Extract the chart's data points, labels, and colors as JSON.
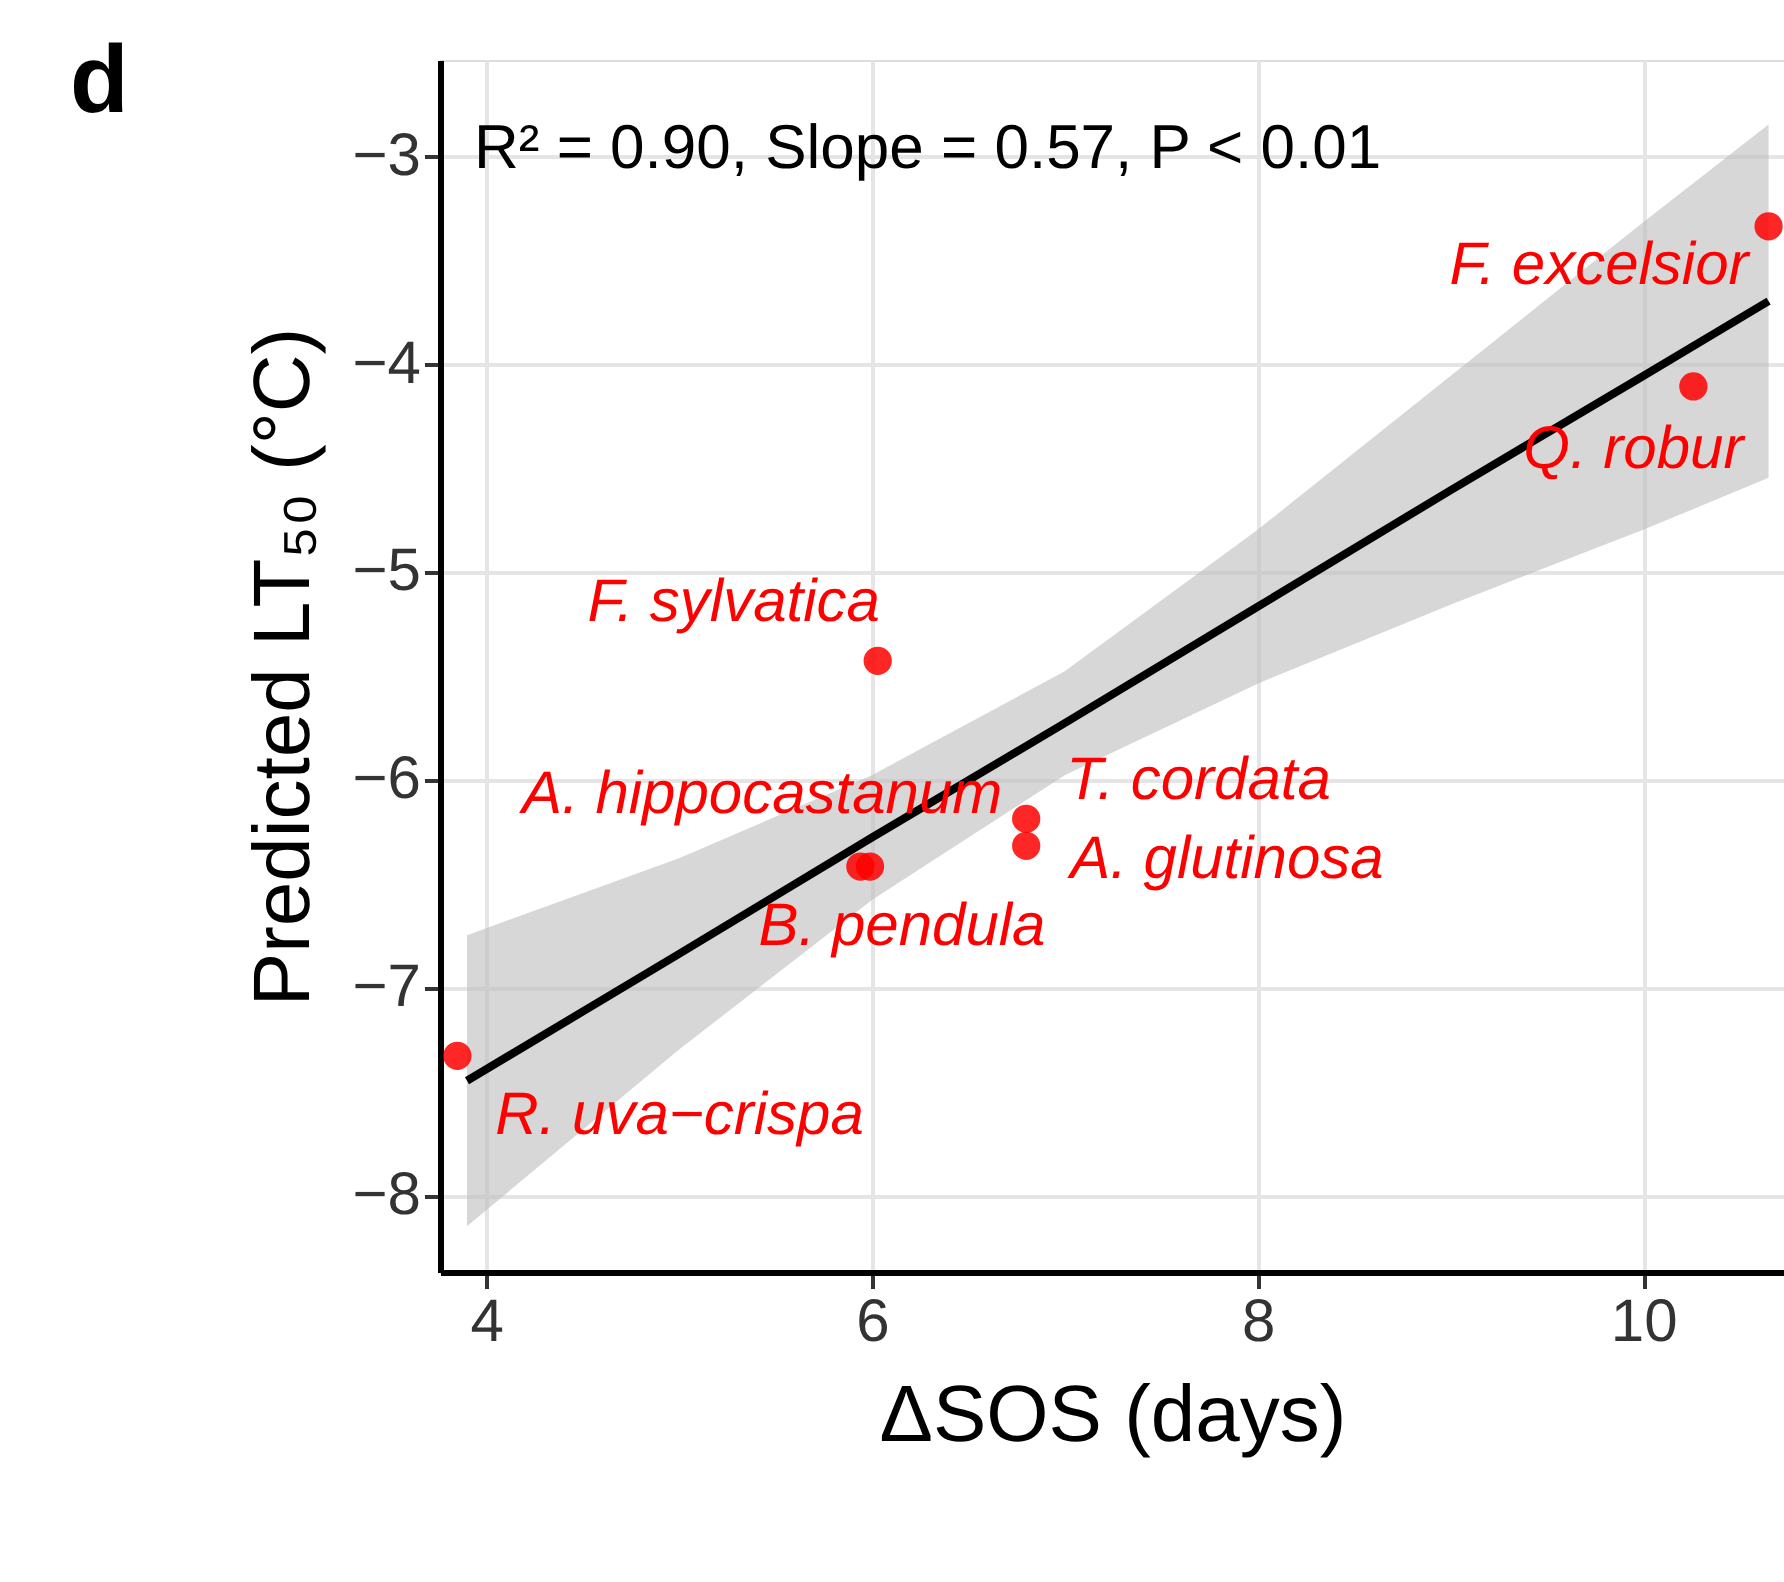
{
  "chart_data": {
    "type": "scatter",
    "xlabel": "ΔSOS (days)",
    "ylabel": "Predicted LT₅₀ (°C)",
    "xlim": [
      3.76,
      10.73
    ],
    "ylim": [
      -8.37,
      -2.54
    ],
    "xticks": [
      4,
      6,
      8,
      10
    ],
    "yticks": [
      -3,
      -4,
      -5,
      -6,
      -7,
      -8
    ],
    "grid": true,
    "marker": "circle",
    "series": [
      {
        "color": "#ff0000",
        "x": [
          10.65,
          10.26,
          6.03,
          6.8,
          6.8,
          5.94,
          5.99,
          3.85
        ],
        "values": [
          -3.34,
          -4.11,
          -5.43,
          -6.19,
          -6.32,
          -6.42,
          -6.42,
          -7.33
        ]
      },
      {
        "type": "line",
        "marker": "none",
        "color": "#000000",
        "x": [
          3.9,
          5,
          6,
          7,
          8,
          9,
          10,
          10.65
        ],
        "values": [
          -7.45,
          -6.84,
          -6.28,
          -5.73,
          -5.17,
          -4.61,
          -4.06,
          -3.7
        ],
        "lower": [
          -8.15,
          -7.3,
          -6.58,
          -5.98,
          -5.54,
          -5.16,
          -4.8,
          -4.55
        ],
        "upper": [
          -6.75,
          -6.38,
          -5.98,
          -5.48,
          -4.8,
          -4.06,
          -3.32,
          -2.85
        ]
      }
    ],
    "annotations": [
      "d",
      "R² = 0.90, Slope = 0.57, P < 0.01",
      {
        "text": "F. excelsior",
        "x": 10.65,
        "y": -3.34
      },
      {
        "text": "Q. robur",
        "x": 10.26,
        "y": -4.11
      },
      {
        "text": "F. sylvatica",
        "x": 6.03,
        "y": -5.43
      },
      {
        "text": "T. cordata",
        "x": 6.8,
        "y": -6.19
      },
      {
        "text": "A. glutinosa",
        "x": 6.8,
        "y": -6.32
      },
      {
        "text": "A. hippocastanum",
        "x": 5.94,
        "y": -6.42
      },
      {
        "text": "B. pendula",
        "x": 5.99,
        "y": -6.42
      },
      {
        "text": "R. uva−crispa",
        "x": 3.85,
        "y": -7.33
      }
    ]
  }
}
